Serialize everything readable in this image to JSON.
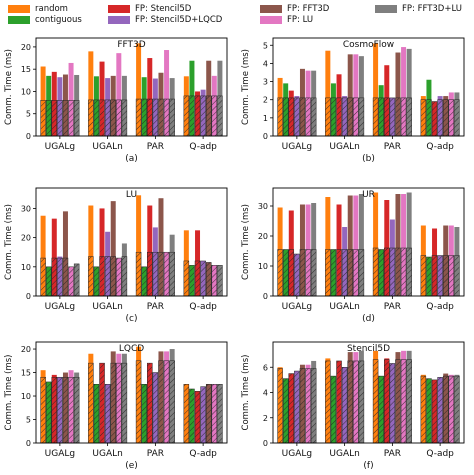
{
  "legend": [
    {
      "label": "random",
      "color": "#ff7f0e"
    },
    {
      "label": "contiguous",
      "color": "#2ca02c"
    },
    {
      "label": "FP: Stencil5D",
      "color": "#d62728"
    },
    {
      "label": "FP: Stencil5D+LQCD",
      "color": "#9467bd"
    },
    {
      "label": "FP: FFT3D",
      "color": "#8c564b"
    },
    {
      "label": "FP: LU",
      "color": "#e377c2"
    },
    {
      "label": "FP: FFT3D+LU",
      "color": "#7f7f7f"
    }
  ],
  "chart_data": [
    {
      "type": "bar",
      "title": "FFT3D",
      "caption": "(a)",
      "ylabel": "Comm. Time (ms)",
      "categories": [
        "UGALg",
        "UGALn",
        "PAR",
        "Q-adp"
      ],
      "ylim": [
        0,
        22
      ],
      "yticks": [
        0,
        5,
        10,
        15,
        20
      ],
      "series": [
        {
          "name": "random",
          "values": [
            15.6,
            19.0,
            20.8,
            13.4
          ]
        },
        {
          "name": "contiguous",
          "values": [
            13.5,
            13.4,
            13.2,
            16.9
          ]
        },
        {
          "name": "FP: Stencil5D",
          "values": [
            14.4,
            16.7,
            17.5,
            10.0
          ]
        },
        {
          "name": "FP: Stencil5D+LQCD",
          "values": [
            13.2,
            13.0,
            12.9,
            10.4
          ]
        },
        {
          "name": "FP: FFT3D",
          "values": [
            13.8,
            13.5,
            14.2,
            16.9
          ]
        },
        {
          "name": "FP: LU",
          "values": [
            16.4,
            18.6,
            19.3,
            13.5
          ]
        },
        {
          "name": "FP: FFT3D+LU",
          "values": [
            13.7,
            13.5,
            13.0,
            16.9
          ]
        }
      ],
      "hatched_baseline": [
        8.0,
        8.1,
        8.3,
        9.0
      ]
    },
    {
      "type": "bar",
      "title": "CosmoFlow",
      "caption": "(b)",
      "ylabel": "Comm. Time (ms)",
      "categories": [
        "UGALg",
        "UGALn",
        "PAR",
        "Q-adp"
      ],
      "ylim": [
        0,
        5.4
      ],
      "yticks": [
        0,
        1,
        2,
        3,
        4,
        5
      ],
      "series": [
        {
          "name": "random",
          "values": [
            3.2,
            4.7,
            5.1,
            2.2
          ]
        },
        {
          "name": "contiguous",
          "values": [
            2.9,
            2.9,
            2.8,
            3.1
          ]
        },
        {
          "name": "FP: Stencil5D",
          "values": [
            2.5,
            3.4,
            3.9,
            1.9
          ]
        },
        {
          "name": "FP: Stencil5D+LQCD",
          "values": [
            2.2,
            2.2,
            2.1,
            2.2
          ]
        },
        {
          "name": "FP: FFT3D",
          "values": [
            3.7,
            4.5,
            4.6,
            2.2
          ]
        },
        {
          "name": "FP: LU",
          "values": [
            3.6,
            4.5,
            4.9,
            2.4
          ]
        },
        {
          "name": "FP: FFT3D+LU",
          "values": [
            3.6,
            4.4,
            4.8,
            2.4
          ]
        }
      ],
      "hatched_baseline": [
        2.1,
        2.1,
        2.1,
        2.0
      ]
    },
    {
      "type": "bar",
      "title": "LU",
      "caption": "(c)",
      "ylabel": "Comm. Time (ms)",
      "categories": [
        "UGALg",
        "UGALn",
        "PAR",
        "Q-adp"
      ],
      "ylim": [
        0,
        37
      ],
      "yticks": [
        0,
        10,
        20,
        30
      ],
      "series": [
        {
          "name": "random",
          "values": [
            27.5,
            31.0,
            34.5,
            22.5
          ]
        },
        {
          "name": "contiguous",
          "values": [
            10.0,
            10.0,
            10.0,
            10.5
          ]
        },
        {
          "name": "FP: Stencil5D",
          "values": [
            26.5,
            30.0,
            31.0,
            22.5
          ]
        },
        {
          "name": "FP: Stencil5D+LQCD",
          "values": [
            13.5,
            22.0,
            23.5,
            12.0
          ]
        },
        {
          "name": "FP: FFT3D",
          "values": [
            29.0,
            32.5,
            33.5,
            11.5
          ]
        },
        {
          "name": "FP: LU",
          "values": [
            10.0,
            13.0,
            15.0,
            10.5
          ]
        },
        {
          "name": "FP: FFT3D+LU",
          "values": [
            11.0,
            18.0,
            21.0,
            10.5
          ]
        }
      ],
      "hatched_baseline": [
        13.0,
        13.5,
        15.0,
        12.0
      ]
    },
    {
      "type": "bar",
      "title": "UR",
      "caption": "(d)",
      "ylabel": "Comm. Time (ms)",
      "categories": [
        "UGALg",
        "UGALn",
        "PAR",
        "Q-adp"
      ],
      "ylim": [
        0,
        36
      ],
      "yticks": [
        0,
        10,
        20,
        30
      ],
      "series": [
        {
          "name": "random",
          "values": [
            29.5,
            33.0,
            34.5,
            23.5
          ]
        },
        {
          "name": "contiguous",
          "values": [
            15.5,
            15.5,
            15.5,
            13.0
          ]
        },
        {
          "name": "FP: Stencil5D",
          "values": [
            28.5,
            30.5,
            32.0,
            22.5
          ]
        },
        {
          "name": "FP: Stencil5D+LQCD",
          "values": [
            14.0,
            23.0,
            25.5,
            13.5
          ]
        },
        {
          "name": "FP: FFT3D",
          "values": [
            30.5,
            33.5,
            34.0,
            23.5
          ]
        },
        {
          "name": "FP: LU",
          "values": [
            30.5,
            33.5,
            34.0,
            23.5
          ]
        },
        {
          "name": "FP: FFT3D+LU",
          "values": [
            31.0,
            34.0,
            34.5,
            23.0
          ]
        }
      ],
      "hatched_baseline": [
        15.5,
        15.5,
        16.0,
        13.5
      ]
    },
    {
      "type": "bar",
      "title": "LQCD",
      "caption": "(e)",
      "ylabel": "Comm. Time (ms)",
      "categories": [
        "UGALg",
        "UGALn",
        "PAR",
        "Q-adp"
      ],
      "ylim": [
        0,
        21.5
      ],
      "yticks": [
        0,
        5,
        10,
        15,
        20
      ],
      "series": [
        {
          "name": "random",
          "values": [
            15.5,
            19.0,
            20.5,
            12.5
          ]
        },
        {
          "name": "contiguous",
          "values": [
            13.0,
            12.5,
            12.5,
            11.5
          ]
        },
        {
          "name": "FP: Stencil5D",
          "values": [
            14.5,
            17.0,
            17.0,
            11.0
          ]
        },
        {
          "name": "FP: Stencil5D+LQCD",
          "values": [
            14.0,
            12.5,
            15.0,
            12.0
          ]
        },
        {
          "name": "FP: FFT3D",
          "values": [
            15.0,
            19.5,
            19.5,
            12.5
          ]
        },
        {
          "name": "FP: LU",
          "values": [
            15.5,
            19.0,
            19.5,
            12.5
          ]
        },
        {
          "name": "FP: FFT3D+LU",
          "values": [
            15.0,
            19.0,
            20.0,
            12.5
          ]
        }
      ],
      "hatched_baseline": [
        14.0,
        17.0,
        17.5,
        12.5
      ]
    },
    {
      "type": "bar",
      "title": "Stencil5D",
      "caption": "(f)",
      "ylabel": "Comm. Time (ms)",
      "categories": [
        "UGALg",
        "UGALn",
        "PAR",
        "Q-adp"
      ],
      "ylim": [
        0,
        8
      ],
      "yticks": [
        0,
        2,
        4,
        6
      ],
      "series": [
        {
          "name": "random",
          "values": [
            6.0,
            6.7,
            7.3,
            5.4
          ]
        },
        {
          "name": "contiguous",
          "values": [
            5.1,
            5.3,
            5.3,
            5.1
          ]
        },
        {
          "name": "FP: Stencil5D",
          "values": [
            5.5,
            6.5,
            6.7,
            5.0
          ]
        },
        {
          "name": "FP: Stencil5D+LQCD",
          "values": [
            5.7,
            6.0,
            6.3,
            5.2
          ]
        },
        {
          "name": "FP: FFT3D",
          "values": [
            6.2,
            7.2,
            7.2,
            5.5
          ]
        },
        {
          "name": "FP: LU",
          "values": [
            6.2,
            7.2,
            7.3,
            5.4
          ]
        },
        {
          "name": "FP: FFT3D+LU",
          "values": [
            6.5,
            7.3,
            7.3,
            5.4
          ]
        }
      ],
      "hatched_baseline": [
        5.9,
        6.5,
        6.6,
        5.3
      ]
    }
  ]
}
